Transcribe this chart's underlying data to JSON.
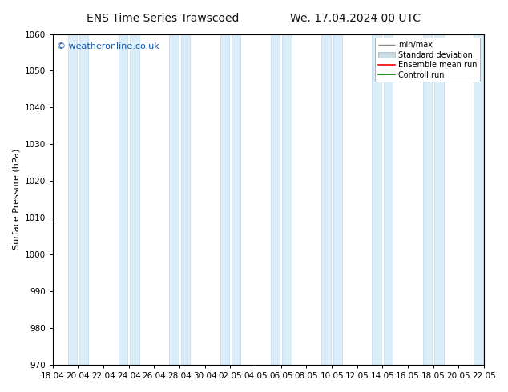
{
  "title_left": "ENS Time Series Trawscoed",
  "title_right": "We. 17.04.2024 00 UTC",
  "ylabel": "Surface Pressure (hPa)",
  "ylim": [
    970,
    1060
  ],
  "yticks": [
    970,
    980,
    990,
    1000,
    1010,
    1020,
    1030,
    1040,
    1050,
    1060
  ],
  "xtick_labels": [
    "18.04",
    "20.04",
    "22.04",
    "24.04",
    "26.04",
    "28.04",
    "30.04",
    "02.05",
    "04.05",
    "06.05",
    "08.05",
    "10.05",
    "12.05",
    "14.05",
    "16.05",
    "18.05",
    "20.05",
    "22.05"
  ],
  "watermark": "© weatheronline.co.uk",
  "bg_color": "#ffffff",
  "band_color": "#daedf8",
  "band_edge_color": "#b8d4e8",
  "legend_entries": [
    "min/max",
    "Standard deviation",
    "Ensemble mean run",
    "Controll run"
  ],
  "legend_colors": [
    "#888888",
    "#c8dce8",
    "#ff0000",
    "#008800"
  ],
  "title_fontsize": 10,
  "axis_fontsize": 8,
  "tick_fontsize": 7.5,
  "ylabel_fontsize": 8
}
